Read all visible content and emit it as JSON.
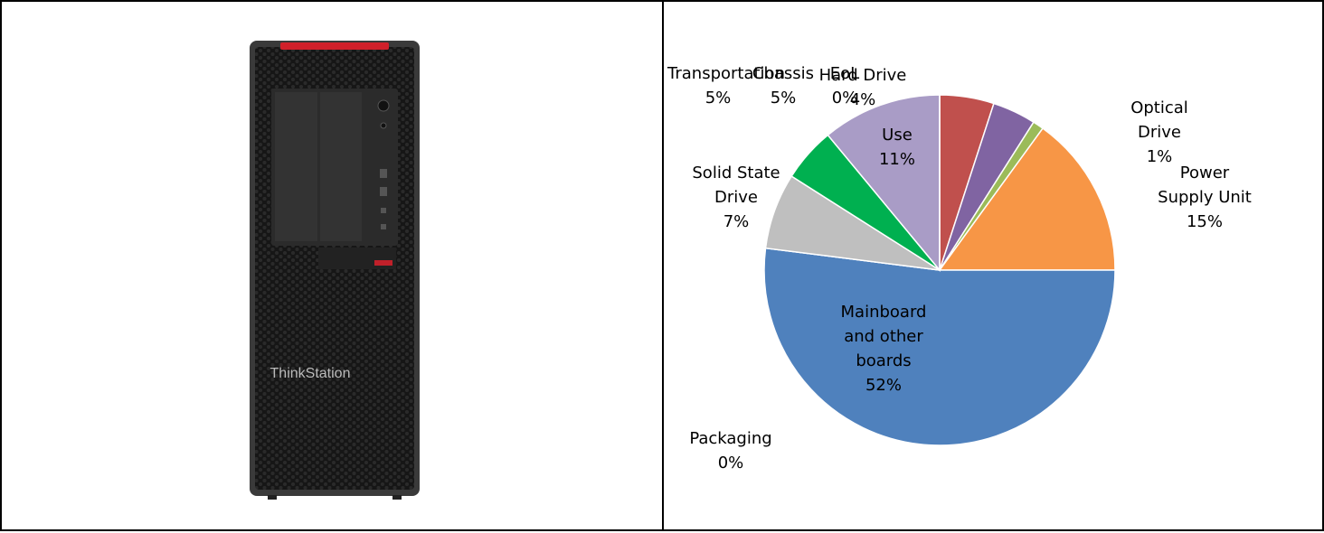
{
  "chart_data": {
    "type": "pie",
    "categories": [
      "Chassis",
      "Hard Drive",
      "Optical Drive",
      "Power Supply Unit",
      "Mainboard and other boards",
      "Packaging",
      "Solid State Drive",
      "Transportation",
      "Use",
      "EoL"
    ],
    "values": [
      5,
      4,
      1,
      15,
      52,
      0,
      7,
      5,
      11,
      0
    ],
    "value_labels": [
      "5%",
      "4%",
      "1%",
      "15%",
      "52%",
      "0%",
      "7%",
      "5%",
      "11%",
      "0%"
    ],
    "colors": [
      "#c0504d",
      "#8064a2",
      "#9bbb59",
      "#f79646",
      "#4f81bd",
      "#4bacc6",
      "#bfbfbf",
      "#00b050",
      "#a99cc6",
      "#8db4e2"
    ]
  }
}
